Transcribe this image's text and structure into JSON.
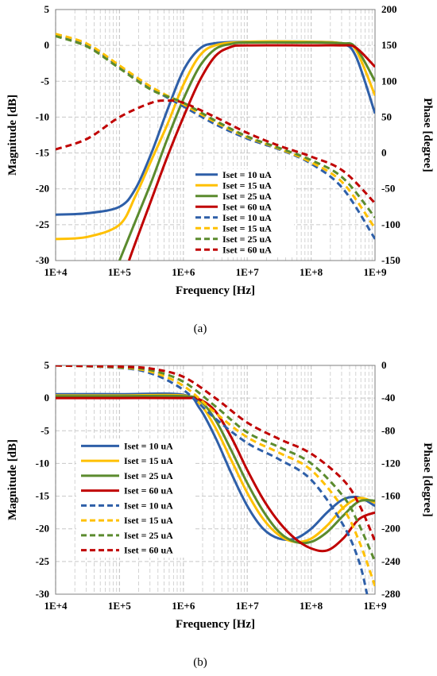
{
  "captions": [
    "(a)",
    "(b)"
  ],
  "colors": {
    "blue": "#2E5FA8",
    "yellow": "#FFC000",
    "green": "#5B8B2E",
    "red": "#C00000",
    "grid": "#C8C8C8"
  },
  "chart_data": [
    {
      "type": "line",
      "xlabel": "Frequency [Hz]",
      "ylabel": "Magnitude [dB]",
      "y2label": "Phase [degree]",
      "xscale": "log",
      "xlim": [
        10000,
        1000000000
      ],
      "ylim": [
        -30,
        5
      ],
      "y2lim": [
        -150,
        200
      ],
      "xticks": [
        "1E+4",
        "1E+5",
        "1E+6",
        "1E+7",
        "1E+8",
        "1E+9"
      ],
      "yticks": [
        "5",
        "0",
        "-5",
        "-10",
        "-15",
        "-20",
        "-25",
        "-30"
      ],
      "y2ticks": [
        "200",
        "150",
        "100",
        "50",
        "0",
        "-50",
        "-100",
        "-150"
      ],
      "grid": true,
      "legend_position": "center-right",
      "series": [
        {
          "name": "Iset = 10 uA",
          "axis": "left",
          "dash": "solid",
          "color": "blue",
          "x": [
            10000,
            31623,
            100000,
            177800,
            316200,
            562300,
            1000000,
            1778000,
            3162000,
            10000000,
            100000000,
            300000000,
            500000000,
            1000000000
          ],
          "y": [
            -23.6,
            -23.4,
            -22.5,
            -20,
            -15,
            -9,
            -3.5,
            -0.5,
            0.3,
            0.5,
            0.5,
            0.2,
            -1.5,
            -9.5
          ]
        },
        {
          "name": "Iset = 15 uA",
          "axis": "left",
          "dash": "solid",
          "color": "yellow",
          "x": [
            10000,
            31623,
            100000,
            177800,
            316200,
            562300,
            1000000,
            1778000,
            3162000,
            10000000,
            100000000,
            300000000,
            500000000,
            1000000000
          ],
          "y": [
            -27,
            -26.7,
            -25,
            -21,
            -16,
            -11,
            -5.5,
            -1.5,
            0,
            0.5,
            0.5,
            0.3,
            -0.6,
            -7
          ]
        },
        {
          "name": "Iset = 25 uA",
          "axis": "left",
          "dash": "solid",
          "color": "green",
          "x": [
            100000,
            177800,
            316200,
            562300,
            1000000,
            1778000,
            3162000,
            5623000,
            10000000,
            100000000,
            300000000,
            500000000,
            1000000000
          ],
          "y": [
            -30,
            -24.5,
            -19,
            -13,
            -7.5,
            -3,
            -0.5,
            0.2,
            0.4,
            0.4,
            0.3,
            -0.3,
            -5
          ]
        },
        {
          "name": "Iset = 60 uA",
          "axis": "left",
          "dash": "solid",
          "color": "red",
          "x": [
            141000,
            177800,
            316200,
            562300,
            1000000,
            1778000,
            3162000,
            5623000,
            10000000,
            100000000,
            300000000,
            500000000,
            1000000000
          ],
          "y": [
            -30,
            -27.5,
            -21.5,
            -15.5,
            -10,
            -5,
            -1.5,
            -0.2,
            0,
            0,
            0,
            -0.3,
            -3
          ]
        },
        {
          "name": "Iset = 10 uA",
          "axis": "right",
          "dash": "dashed",
          "color": "blue",
          "x": [
            10000,
            31623,
            100000,
            316200,
            1000000,
            3162000,
            10000000,
            31620000,
            100000000,
            316200000,
            1000000000
          ],
          "y": [
            165,
            150,
            120,
            90,
            65,
            40,
            20,
            5,
            -15,
            -50,
            -120
          ]
        },
        {
          "name": "Iset = 15 uA",
          "axis": "right",
          "dash": "dashed",
          "color": "yellow",
          "x": [
            10000,
            31623,
            100000,
            316200,
            1000000,
            3162000,
            10000000,
            31620000,
            100000000,
            316200000,
            1000000000
          ],
          "y": [
            166,
            152,
            122,
            92,
            68,
            43,
            22,
            6,
            -13,
            -42,
            -105
          ]
        },
        {
          "name": "Iset = 25 uA",
          "axis": "right",
          "dash": "dashed",
          "color": "green",
          "x": [
            10000,
            31623,
            100000,
            316200,
            1000000,
            3162000,
            10000000,
            31620000,
            100000000,
            316200000,
            1000000000
          ],
          "y": [
            163,
            148,
            118,
            88,
            70,
            45,
            23,
            7,
            -10,
            -35,
            -90
          ]
        },
        {
          "name": "Iset = 60 uA",
          "axis": "right",
          "dash": "dashed",
          "color": "red",
          "x": [
            10000,
            31623,
            100000,
            316200,
            562300,
            1000000,
            3162000,
            10000000,
            31620000,
            100000000,
            316200000,
            1000000000
          ],
          "y": [
            5,
            20,
            50,
            70,
            73,
            70,
            50,
            28,
            10,
            -5,
            -25,
            -70
          ]
        }
      ]
    },
    {
      "type": "line",
      "xlabel": "Frequency [Hz]",
      "ylabel": "Magnitude [dB]",
      "y2label": "Phase [degree]",
      "xscale": "log",
      "xlim": [
        10000,
        1000000000
      ],
      "ylim": [
        -30,
        5
      ],
      "y2lim": [
        -280,
        0
      ],
      "xticks": [
        "1E+4",
        "1E+5",
        "1E+6",
        "1E+7",
        "1E+8",
        "1E+9"
      ],
      "yticks": [
        "5",
        "0",
        "-5",
        "-10",
        "-15",
        "-20",
        "-25",
        "-30"
      ],
      "y2ticks": [
        "0",
        "-40",
        "-80",
        "-120",
        "-160",
        "-200",
        "-240",
        "-280"
      ],
      "grid": true,
      "legend_position": "center-left",
      "series": [
        {
          "name": "Iset = 10 uA",
          "axis": "left",
          "dash": "solid",
          "color": "blue",
          "x": [
            10000,
            100000,
            1000000,
            1778000,
            3162000,
            5623000,
            10000000,
            17780000,
            31620000,
            56230000,
            100000000,
            177800000,
            316200000,
            562300000,
            1000000000
          ],
          "y": [
            0.6,
            0.6,
            0.5,
            -1.5,
            -6,
            -11.5,
            -16.5,
            -20,
            -21.5,
            -21.5,
            -20,
            -17.5,
            -15.5,
            -15.2,
            -16.5
          ]
        },
        {
          "name": "Iset = 15 uA",
          "axis": "left",
          "dash": "solid",
          "color": "yellow",
          "x": [
            10000,
            100000,
            1000000,
            1778000,
            3162000,
            5623000,
            10000000,
            17780000,
            31620000,
            56230000,
            100000000,
            177800000,
            316200000,
            562300000,
            1000000000
          ],
          "y": [
            0.4,
            0.4,
            0.4,
            -0.8,
            -4.5,
            -9.5,
            -14.5,
            -18.5,
            -21,
            -22,
            -21.5,
            -19.5,
            -16.8,
            -15.3,
            -16
          ]
        },
        {
          "name": "Iset = 25 uA",
          "axis": "left",
          "dash": "solid",
          "color": "green",
          "x": [
            10000,
            100000,
            1000000,
            1778000,
            3162000,
            5623000,
            10000000,
            17780000,
            31620000,
            56230000,
            100000000,
            177800000,
            316200000,
            562300000,
            1000000000
          ],
          "y": [
            0.3,
            0.3,
            0.3,
            -0.3,
            -3.3,
            -8,
            -13,
            -17.3,
            -20.5,
            -22,
            -22,
            -20.5,
            -18,
            -15.8,
            -15.7
          ]
        },
        {
          "name": "Iset = 60 uA",
          "axis": "left",
          "dash": "solid",
          "color": "red",
          "x": [
            10000,
            100000,
            1000000,
            1778000,
            3162000,
            5623000,
            10000000,
            17780000,
            31620000,
            56230000,
            100000000,
            177800000,
            316200000,
            562300000,
            1000000000
          ],
          "y": [
            0,
            0,
            0,
            -0.2,
            -2,
            -6,
            -11,
            -15.5,
            -19,
            -21.5,
            -23,
            -23.3,
            -21.5,
            -18.5,
            -17.5
          ]
        },
        {
          "name": "Iset = 10 uA",
          "axis": "right",
          "dash": "dashed",
          "color": "blue",
          "x": [
            10000,
            100000,
            316200,
            1000000,
            3162000,
            10000000,
            31620000,
            100000000,
            316200000,
            562300000,
            750000000
          ],
          "y": [
            0,
            -3,
            -10,
            -30,
            -65,
            -95,
            -115,
            -140,
            -195,
            -240,
            -280
          ]
        },
        {
          "name": "Iset = 15 uA",
          "axis": "right",
          "dash": "dashed",
          "color": "yellow",
          "x": [
            10000,
            100000,
            316200,
            1000000,
            3162000,
            10000000,
            31620000,
            100000000,
            316200000,
            562300000,
            1000000000
          ],
          "y": [
            0,
            -2.5,
            -8,
            -25,
            -58,
            -88,
            -107,
            -128,
            -175,
            -215,
            -270
          ]
        },
        {
          "name": "Iset = 25 uA",
          "axis": "right",
          "dash": "dashed",
          "color": "green",
          "x": [
            10000,
            100000,
            316200,
            1000000,
            3162000,
            10000000,
            31620000,
            100000000,
            316200000,
            562300000,
            1000000000
          ],
          "y": [
            0,
            -2,
            -6,
            -20,
            -50,
            -82,
            -100,
            -120,
            -160,
            -195,
            -240
          ]
        },
        {
          "name": "Iset = 60 uA",
          "axis": "right",
          "dash": "dashed",
          "color": "red",
          "x": [
            10000,
            100000,
            316200,
            1000000,
            3162000,
            10000000,
            31620000,
            100000000,
            316200000,
            562300000,
            1000000000
          ],
          "y": [
            0,
            -1.5,
            -4,
            -14,
            -40,
            -70,
            -90,
            -108,
            -140,
            -170,
            -215
          ]
        }
      ]
    }
  ]
}
